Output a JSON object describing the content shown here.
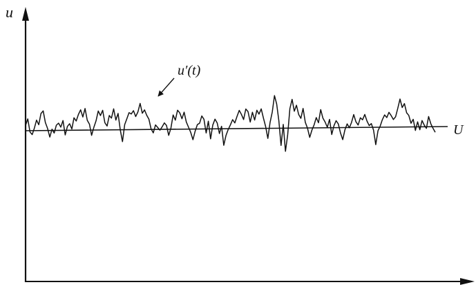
{
  "figure": {
    "y_axis_label": "u",
    "mean_line_label": "U",
    "fluctuation_label": "u′(t)"
  },
  "chart_data": {
    "type": "line",
    "title": "",
    "xlabel": "",
    "ylabel": "u",
    "reference_line": "U",
    "series": [
      {
        "name": "u′(t)",
        "values": [
          0.8,
          1.8,
          -0.2,
          -0.6,
          0.4,
          1.6,
          0.9,
          2.6,
          3.0,
          1.2,
          0.3,
          -1.0,
          0.2,
          -0.4,
          0.8,
          1.1,
          0.5,
          1.5,
          -0.7,
          0.6,
          1.0,
          0.2,
          1.9,
          1.4,
          2.4,
          3.1,
          2.0,
          3.3,
          1.5,
          0.9,
          -0.8,
          0.4,
          1.4,
          2.9,
          2.2,
          3.0,
          1.1,
          0.6,
          2.2,
          1.8,
          3.2,
          1.5,
          2.5,
          0.0,
          -1.8,
          0.8,
          1.7,
          2.6,
          2.4,
          2.9,
          2.0,
          2.7,
          4.0,
          2.5,
          3.0,
          2.2,
          1.6,
          0.1,
          -0.5,
          0.7,
          0.3,
          -0.1,
          0.4,
          1.0,
          0.6,
          -0.9,
          0.2,
          2.2,
          1.4,
          2.9,
          2.5,
          1.6,
          2.6,
          1.1,
          0.3,
          -0.5,
          -1.6,
          -0.3,
          0.7,
          0.9,
          2.0,
          1.5,
          -0.6,
          1.2,
          -1.5,
          0.6,
          1.5,
          0.9,
          -0.7,
          0.4,
          -2.5,
          -1.0,
          -0.1,
          0.6,
          1.4,
          0.9,
          1.9,
          2.8,
          2.2,
          1.4,
          3.0,
          2.6,
          1.0,
          2.5,
          1.3,
          2.8,
          2.2,
          3.0,
          1.6,
          0.3,
          -1.5,
          0.9,
          2.5,
          5.0,
          3.7,
          1.2,
          -2.6,
          0.6,
          -3.5,
          -1.0,
          3.0,
          4.4,
          2.6,
          3.5,
          2.1,
          1.5,
          3.0,
          0.9,
          0.0,
          -1.4,
          -0.3,
          0.5,
          1.6,
          0.8,
          2.8,
          1.5,
          0.9,
          0.1,
          1.3,
          -1.0,
          0.3,
          1.1,
          0.6,
          -0.8,
          -1.8,
          -0.3,
          0.6,
          0.0,
          0.8,
          2.0,
          0.9,
          0.4,
          1.5,
          1.2,
          2.0,
          1.0,
          0.3,
          0.6,
          -0.4,
          -2.6,
          -0.5,
          0.2,
          1.2,
          1.9,
          1.5,
          2.3,
          1.8,
          1.2,
          1.6,
          2.9,
          4.3,
          3.0,
          3.6,
          2.2,
          1.8,
          0.6,
          1.2,
          -0.5,
          0.8,
          -0.4,
          1.0,
          0.3,
          -0.2,
          1.6,
          0.5,
          -0.2,
          -0.8
        ]
      }
    ]
  }
}
